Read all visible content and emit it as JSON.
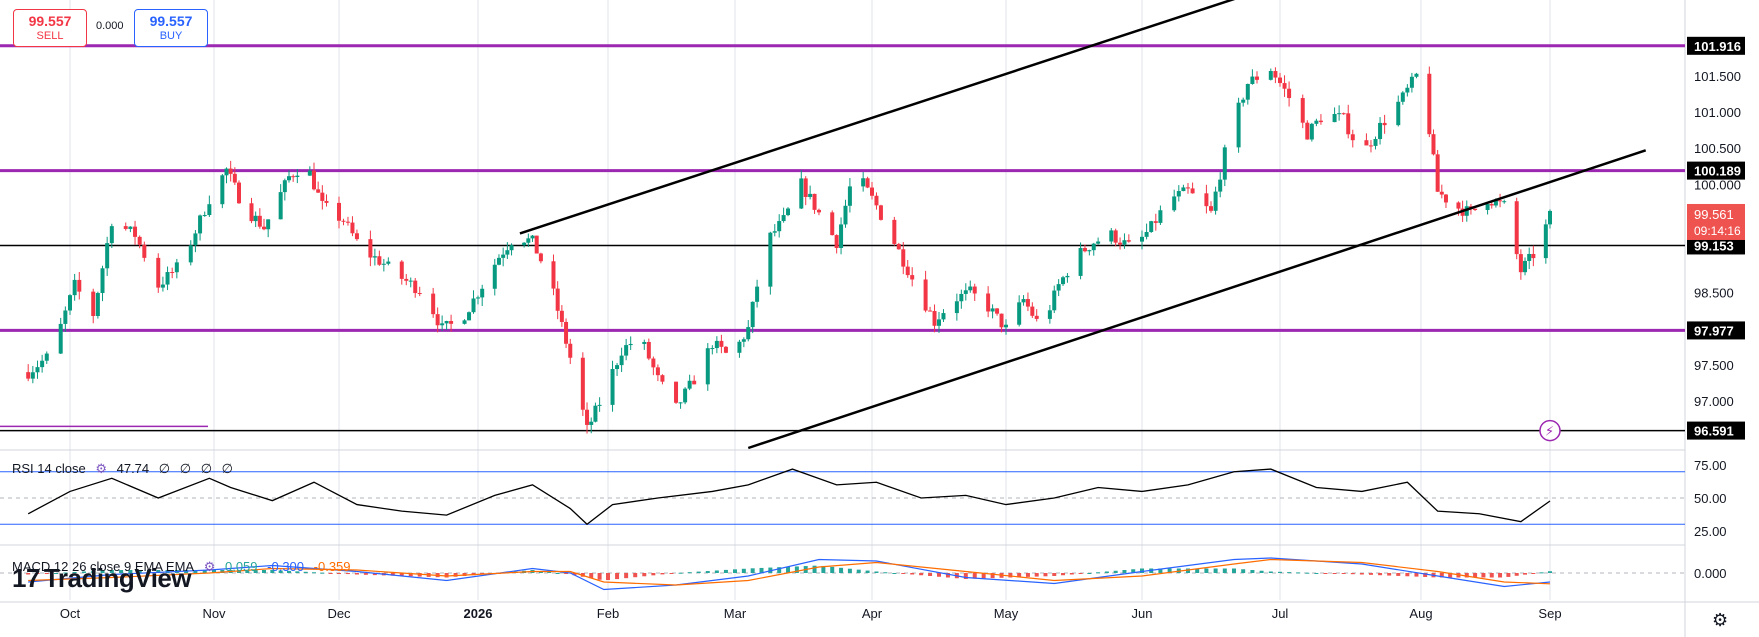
{
  "trade_panel": {
    "sell_price": "99.557",
    "sell_label": "SELL",
    "spread": "0.000",
    "buy_price": "99.557",
    "buy_label": "BUY"
  },
  "watermark": "TradingView",
  "colors": {
    "up": "#089981",
    "down": "#f23645",
    "level": "#9c27b0",
    "trend": "#000000",
    "rsi": "#000000",
    "macd": "#2962ff",
    "signal": "#ff6d00",
    "hist_up": "#26a69a",
    "hist_down": "#ef5350"
  },
  "chart_data": [
    {
      "type": "candlestick",
      "symbol_overlay_levels": [
        "101.916",
        "100.189",
        "99.153",
        "97.977",
        "96.591"
      ],
      "current_price": "99.561",
      "countdown": "09:14:16",
      "y_ticks": [
        "101.500",
        "101.000",
        "100.500",
        "100.000",
        "98.500",
        "97.500",
        "97.000"
      ],
      "ylim": [
        96.35,
        102.55
      ],
      "x_ticks": [
        "Oct",
        "Nov",
        "Dec",
        "2026",
        "Feb",
        "Mar",
        "Apr",
        "May",
        "Jun",
        "Jul",
        "Aug",
        "Sep"
      ],
      "horizontal_levels": [
        {
          "value": 101.916,
          "style": "purple"
        },
        {
          "value": 100.189,
          "style": "purple"
        },
        {
          "value": 99.153,
          "style": "black"
        },
        {
          "value": 97.977,
          "style": "purple"
        },
        {
          "value": 96.591,
          "style": "black"
        }
      ],
      "channel_lines": [
        {
          "from": [
            "2026-01-11",
            99.32
          ],
          "to": [
            "2026-06-29",
            102.73
          ]
        },
        {
          "from": [
            "2026-03-04",
            96.35
          ],
          "to": [
            "2026-09-24",
            100.47
          ]
        }
      ],
      "close_path": [
        [
          "2025-09-22",
          97.4
        ],
        [
          "2025-09-27",
          97.65
        ],
        [
          "2025-10-02",
          98.6
        ],
        [
          "2025-10-06",
          98.2
        ],
        [
          "2025-10-10",
          99.5
        ],
        [
          "2025-10-15",
          99.3
        ],
        [
          "2025-10-20",
          98.6
        ],
        [
          "2025-10-25",
          98.9
        ],
        [
          "2025-10-31",
          99.8
        ],
        [
          "2025-11-04",
          100.2
        ],
        [
          "2025-11-08",
          99.7
        ],
        [
          "2025-11-13",
          99.4
        ],
        [
          "2025-11-19",
          100.1
        ],
        [
          "2025-11-23",
          100.3
        ],
        [
          "2025-11-27",
          99.7
        ],
        [
          "2025-12-02",
          99.5
        ],
        [
          "2025-12-06",
          99.1
        ],
        [
          "2025-12-11",
          98.9
        ],
        [
          "2025-12-15",
          98.7
        ],
        [
          "2025-12-20",
          98.5
        ],
        [
          "2025-12-24",
          98.0
        ],
        [
          "2025-12-28",
          98.1
        ],
        [
          "2026-01-02",
          98.6
        ],
        [
          "2026-01-06",
          99.0
        ],
        [
          "2026-01-10",
          99.3
        ],
        [
          "2026-01-14",
          99.2
        ],
        [
          "2026-01-18",
          98.7
        ],
        [
          "2026-01-23",
          97.6
        ],
        [
          "2026-01-27",
          96.6
        ],
        [
          "2026-01-31",
          97.1
        ],
        [
          "2026-02-04",
          97.7
        ],
        [
          "2026-02-08",
          97.9
        ],
        [
          "2026-02-12",
          97.3
        ],
        [
          "2026-02-16",
          96.9
        ],
        [
          "2026-02-20",
          97.3
        ],
        [
          "2026-02-24",
          97.8
        ],
        [
          "2026-02-28",
          97.6
        ],
        [
          "2026-03-04",
          98.0
        ],
        [
          "2026-03-08",
          99.2
        ],
        [
          "2026-03-12",
          99.5
        ],
        [
          "2026-03-16",
          100.0
        ],
        [
          "2026-03-20",
          99.6
        ],
        [
          "2026-03-24",
          99.2
        ],
        [
          "2026-03-28",
          100.2
        ],
        [
          "2026-04-02",
          99.7
        ],
        [
          "2026-04-06",
          99.2
        ],
        [
          "2026-04-10",
          98.7
        ],
        [
          "2026-04-15",
          98.1
        ],
        [
          "2026-04-19",
          98.4
        ],
        [
          "2026-04-23",
          98.5
        ],
        [
          "2026-04-27",
          98.3
        ],
        [
          "2026-05-01",
          98.0
        ],
        [
          "2026-05-05",
          98.4
        ],
        [
          "2026-05-09",
          98.0
        ],
        [
          "2026-05-13",
          98.6
        ],
        [
          "2026-05-17",
          99.0
        ],
        [
          "2026-05-21",
          99.2
        ],
        [
          "2026-05-25",
          99.3
        ],
        [
          "2026-05-30",
          99.1
        ],
        [
          "2026-06-03",
          99.4
        ],
        [
          "2026-06-07",
          99.8
        ],
        [
          "2026-06-11",
          99.9
        ],
        [
          "2026-06-16",
          99.6
        ],
        [
          "2026-06-20",
          100.7
        ],
        [
          "2026-06-24",
          101.4
        ],
        [
          "2026-06-29",
          101.6
        ],
        [
          "2026-07-03",
          101.2
        ],
        [
          "2026-07-07",
          100.7
        ],
        [
          "2026-07-11",
          101.0
        ],
        [
          "2026-07-15",
          100.9
        ],
        [
          "2026-07-19",
          100.4
        ],
        [
          "2026-07-23",
          100.8
        ],
        [
          "2026-07-28",
          101.2
        ],
        [
          "2026-08-01",
          101.6
        ],
        [
          "2026-08-05",
          99.9
        ],
        [
          "2026-08-09",
          99.7
        ],
        [
          "2026-08-13",
          99.6
        ],
        [
          "2026-08-17",
          99.8
        ],
        [
          "2026-08-21",
          99.7
        ],
        [
          "2026-08-25",
          98.8
        ],
        [
          "2026-08-29",
          99.1
        ],
        [
          "2026-09-01",
          99.56
        ]
      ]
    },
    {
      "type": "line",
      "name": "RSI 14 close",
      "legend": {
        "label": "RSI 14 close",
        "value": "47.74",
        "extras": [
          "∅",
          "∅",
          "∅",
          "∅"
        ]
      },
      "y_ticks": [
        "75.00",
        "50.00",
        "25.00"
      ],
      "ylim": [
        15,
        85
      ],
      "bands": [
        70,
        50,
        30
      ],
      "series": [
        [
          "2025-09-22",
          38
        ],
        [
          "2025-10-01",
          55
        ],
        [
          "2025-10-10",
          65
        ],
        [
          "2025-10-20",
          50
        ],
        [
          "2025-10-31",
          65
        ],
        [
          "2025-11-05",
          58
        ],
        [
          "2025-11-15",
          48
        ],
        [
          "2025-11-25",
          62
        ],
        [
          "2025-12-05",
          45
        ],
        [
          "2025-12-15",
          40
        ],
        [
          "2025-12-25",
          37
        ],
        [
          "2026-01-05",
          52
        ],
        [
          "2026-01-14",
          60
        ],
        [
          "2026-01-23",
          42
        ],
        [
          "2026-01-27",
          30
        ],
        [
          "2026-02-02",
          45
        ],
        [
          "2026-02-12",
          50
        ],
        [
          "2026-02-24",
          55
        ],
        [
          "2026-03-04",
          60
        ],
        [
          "2026-03-14",
          72
        ],
        [
          "2026-03-24",
          60
        ],
        [
          "2026-04-02",
          62
        ],
        [
          "2026-04-12",
          50
        ],
        [
          "2026-04-22",
          52
        ],
        [
          "2026-05-01",
          45
        ],
        [
          "2026-05-12",
          50
        ],
        [
          "2026-05-22",
          58
        ],
        [
          "2026-06-01",
          55
        ],
        [
          "2026-06-11",
          60
        ],
        [
          "2026-06-21",
          70
        ],
        [
          "2026-06-29",
          72
        ],
        [
          "2026-07-09",
          58
        ],
        [
          "2026-07-19",
          55
        ],
        [
          "2026-07-29",
          62
        ],
        [
          "2026-08-05",
          40
        ],
        [
          "2026-08-15",
          38
        ],
        [
          "2026-08-25",
          32
        ],
        [
          "2026-09-01",
          47.74
        ]
      ]
    },
    {
      "type": "line",
      "name": "MACD 12 26 close 9 EMA EMA",
      "legend": {
        "label": "MACD 12 26 close 9 EMA EMA",
        "values": [
          "0.059",
          "-0.300",
          "-0.359"
        ]
      },
      "y_ticks": [
        "0.000"
      ],
      "ylim": [
        -0.9,
        0.9
      ],
      "macd": [
        [
          "2025-09-22",
          -0.3
        ],
        [
          "2025-10-10",
          -0.05
        ],
        [
          "2025-10-31",
          0.1
        ],
        [
          "2025-11-15",
          0.25
        ],
        [
          "2025-12-05",
          0.05
        ],
        [
          "2025-12-25",
          -0.25
        ],
        [
          "2026-01-14",
          0.15
        ],
        [
          "2026-01-23",
          0.0
        ],
        [
          "2026-01-31",
          -0.55
        ],
        [
          "2026-02-16",
          -0.4
        ],
        [
          "2026-03-04",
          -0.1
        ],
        [
          "2026-03-20",
          0.45
        ],
        [
          "2026-04-02",
          0.4
        ],
        [
          "2026-04-22",
          -0.15
        ],
        [
          "2026-05-12",
          -0.35
        ],
        [
          "2026-06-01",
          0.05
        ],
        [
          "2026-06-21",
          0.45
        ],
        [
          "2026-06-29",
          0.5
        ],
        [
          "2026-07-19",
          0.3
        ],
        [
          "2026-08-05",
          -0.1
        ],
        [
          "2026-08-21",
          -0.45
        ],
        [
          "2026-09-01",
          -0.3
        ]
      ],
      "signal": [
        [
          "2025-09-22",
          -0.25
        ],
        [
          "2025-10-10",
          -0.15
        ],
        [
          "2025-10-31",
          0.0
        ],
        [
          "2025-11-15",
          0.15
        ],
        [
          "2025-12-05",
          0.1
        ],
        [
          "2025-12-25",
          -0.1
        ],
        [
          "2026-01-14",
          0.05
        ],
        [
          "2026-01-23",
          0.05
        ],
        [
          "2026-01-31",
          -0.3
        ],
        [
          "2026-02-16",
          -0.4
        ],
        [
          "2026-03-04",
          -0.25
        ],
        [
          "2026-03-20",
          0.2
        ],
        [
          "2026-04-02",
          0.35
        ],
        [
          "2026-04-22",
          0.05
        ],
        [
          "2026-05-12",
          -0.25
        ],
        [
          "2026-06-01",
          -0.1
        ],
        [
          "2026-06-21",
          0.3
        ],
        [
          "2026-06-29",
          0.45
        ],
        [
          "2026-07-19",
          0.35
        ],
        [
          "2026-08-05",
          0.05
        ],
        [
          "2026-08-21",
          -0.3
        ],
        [
          "2026-09-01",
          -0.36
        ]
      ]
    }
  ]
}
